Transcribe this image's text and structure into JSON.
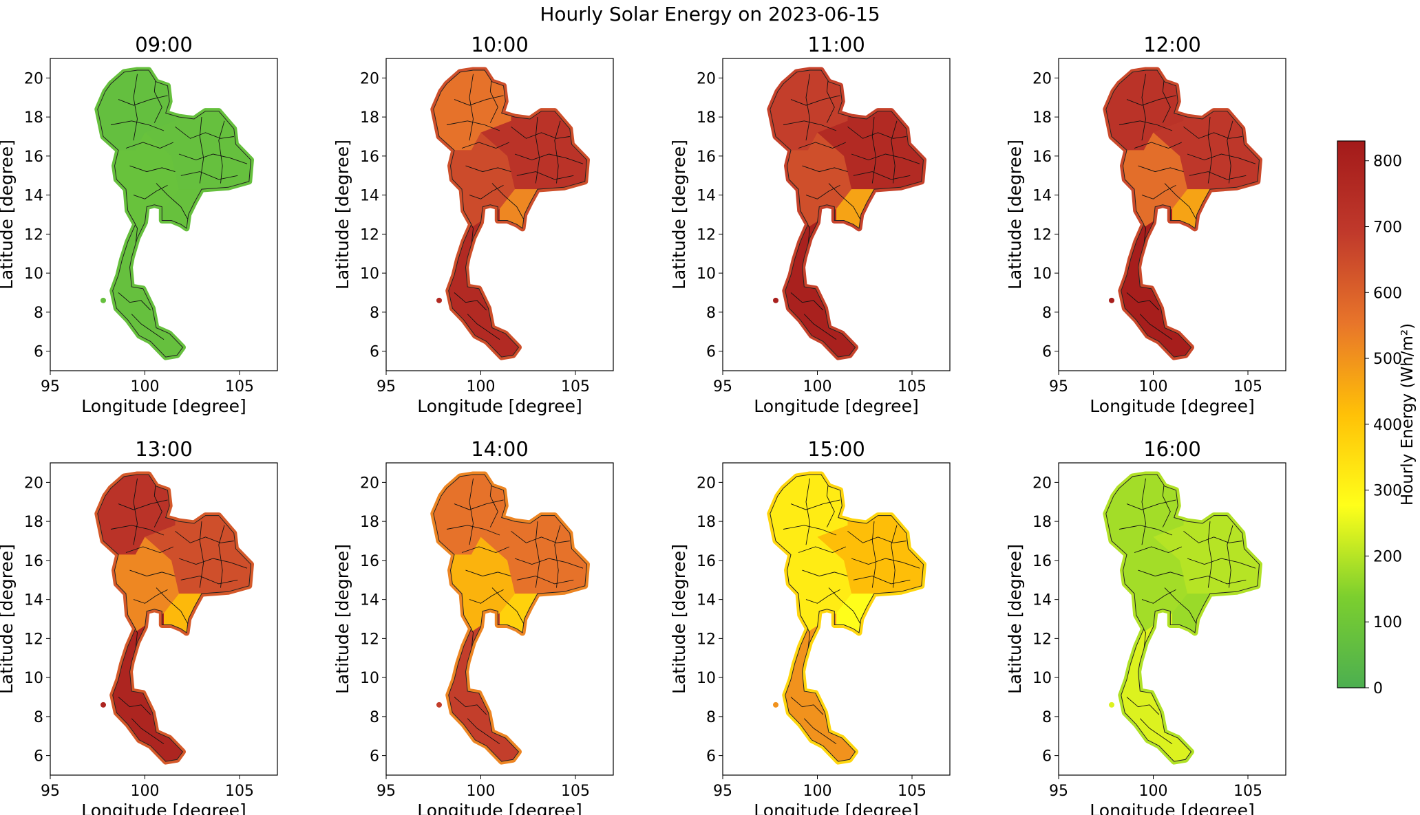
{
  "title": "Hourly Solar Energy on 2023-06-15",
  "axes": {
    "xlabel": "Longitude [degree]",
    "ylabel": "Latitude [degree]",
    "xlim": [
      95,
      107
    ],
    "ylim": [
      5,
      21
    ],
    "xticks": [
      95,
      100,
      105
    ],
    "yticks": [
      6,
      8,
      10,
      12,
      14,
      16,
      18,
      20
    ]
  },
  "colorbar": {
    "label": "Hourly Energy (Wh/m²)",
    "min": 0,
    "max": 830,
    "ticks": [
      0,
      100,
      200,
      300,
      400,
      500,
      600,
      700,
      800
    ],
    "colors": [
      "#4caf50",
      "#7ccf2e",
      "#ffff1a",
      "#ffc107",
      "#e8752a",
      "#c0392b",
      "#a31a1a"
    ]
  },
  "chart_data": {
    "type": "heatmap",
    "panels": [
      {
        "title": "09:00",
        "regions": {
          "north": 70,
          "northeast": 75,
          "central": 80,
          "east": 78,
          "south": 75
        }
      },
      {
        "title": "10:00",
        "regions": {
          "north": 560,
          "northeast": 720,
          "central": 650,
          "east": 520,
          "south": 760
        }
      },
      {
        "title": "11:00",
        "regions": {
          "north": 680,
          "northeast": 760,
          "central": 640,
          "east": 470,
          "south": 800
        }
      },
      {
        "title": "12:00",
        "regions": {
          "north": 720,
          "northeast": 700,
          "central": 570,
          "east": 470,
          "south": 810
        }
      },
      {
        "title": "13:00",
        "regions": {
          "north": 720,
          "northeast": 640,
          "central": 520,
          "east": 430,
          "south": 780
        }
      },
      {
        "title": "14:00",
        "regions": {
          "north": 560,
          "northeast": 560,
          "central": 440,
          "east": 380,
          "south": 680
        }
      },
      {
        "title": "15:00",
        "regions": {
          "north": 320,
          "northeast": 420,
          "central": 320,
          "east": 280,
          "south": 500
        }
      },
      {
        "title": "16:00",
        "regions": {
          "north": 180,
          "northeast": 200,
          "central": 180,
          "east": 170,
          "south": 240
        }
      }
    ]
  }
}
